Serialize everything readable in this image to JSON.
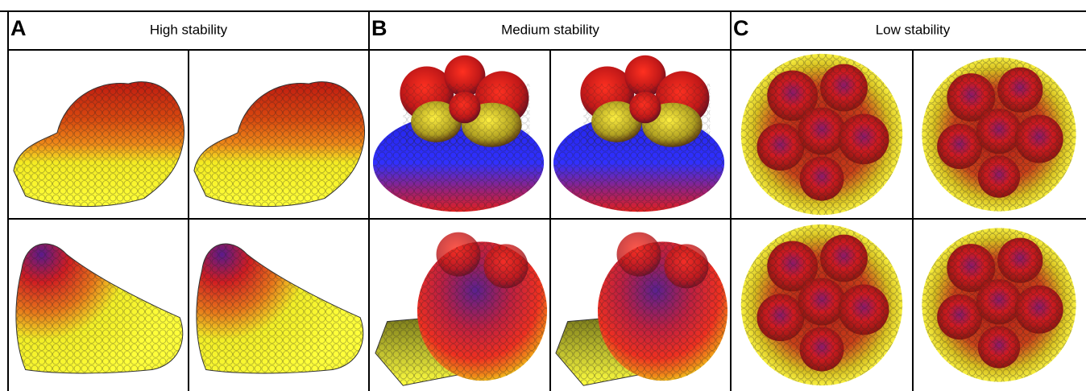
{
  "panels": [
    {
      "label": "A",
      "title": "High stability"
    },
    {
      "label": "B",
      "title": "Medium stability"
    },
    {
      "label": "C",
      "title": "Low stability"
    }
  ]
}
